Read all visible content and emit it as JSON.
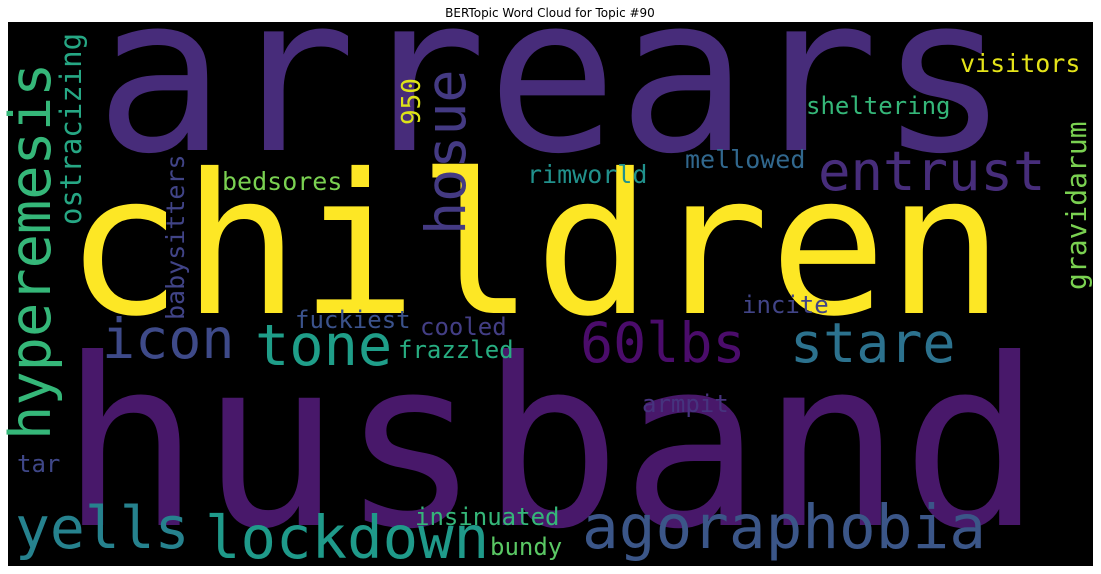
{
  "chart_data": {
    "type": "wordcloud",
    "title": "BERTopic Word Cloud for Topic #90",
    "words": [
      {
        "text": "arrears",
        "color": "#472c7a"
      },
      {
        "text": "children",
        "color": "#fde725"
      },
      {
        "text": "husband",
        "color": "#48186a"
      },
      {
        "text": "hyperemesis",
        "color": "#35b779"
      },
      {
        "text": "ostracizing",
        "color": "#26a784"
      },
      {
        "text": "babysitters",
        "color": "#414487"
      },
      {
        "text": "hosue",
        "color": "#443a83"
      },
      {
        "text": "950",
        "color": "#dde318"
      },
      {
        "text": "gravidarum",
        "color": "#7ad151"
      },
      {
        "text": "visitors",
        "color": "#e5e419"
      },
      {
        "text": "sheltering",
        "color": "#35b779"
      },
      {
        "text": "entrust",
        "color": "#472d7b"
      },
      {
        "text": "mellowed",
        "color": "#31688e"
      },
      {
        "text": "rimworld",
        "color": "#21918c"
      },
      {
        "text": "bedsores",
        "color": "#7ad151"
      },
      {
        "text": "incite",
        "color": "#414487"
      },
      {
        "text": "icon",
        "color": "#3e4a89"
      },
      {
        "text": "tone",
        "color": "#1f9e89"
      },
      {
        "text": "60lbs",
        "color": "#4b0c6b"
      },
      {
        "text": "stare",
        "color": "#2c728e"
      },
      {
        "text": "fuckiest",
        "color": "#3b528b"
      },
      {
        "text": "cooled",
        "color": "#433e85"
      },
      {
        "text": "frazzled",
        "color": "#27ad81"
      },
      {
        "text": "armpit",
        "color": "#46337e"
      },
      {
        "text": "tar",
        "color": "#3f4788"
      },
      {
        "text": "yells",
        "color": "#26828e"
      },
      {
        "text": "lockdown",
        "color": "#1f9a8a"
      },
      {
        "text": "agoraphobia",
        "color": "#3b5688"
      },
      {
        "text": "insinuated",
        "color": "#35b779"
      },
      {
        "text": "bundy",
        "color": "#5ac864"
      }
    ]
  }
}
